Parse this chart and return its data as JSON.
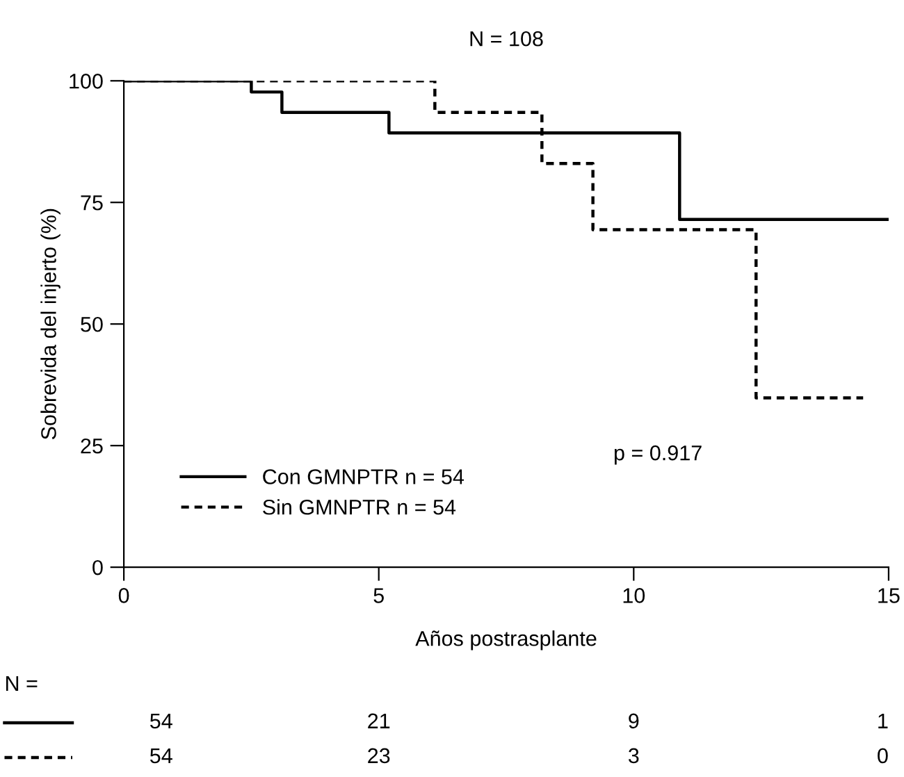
{
  "chart_data": {
    "type": "step",
    "title": "N = 108",
    "xlabel": "Años postrasplante",
    "ylabel": "Sobrevida del injerto (%)",
    "series": [
      {
        "name": "Con GMNPTR n = 54",
        "color": "#000000",
        "line_style": "solid",
        "x": [
          0,
          2.5,
          3.1,
          5.2,
          10.9,
          15
        ],
        "values": [
          100,
          97.7,
          93.5,
          89.3,
          71.5,
          71.5
        ]
      },
      {
        "name": "Sin GMNPTR n = 54",
        "color": "#000000",
        "line_style": "dashed",
        "x": [
          0,
          6.1,
          8.2,
          9.2,
          12.4,
          14.5
        ],
        "values": [
          100,
          93.5,
          83.0,
          69.4,
          34.8,
          34.8
        ]
      }
    ],
    "xlim": [
      0,
      15
    ],
    "xticks": [
      0,
      5,
      10,
      15
    ],
    "ylim": [
      0,
      100
    ],
    "yticks": [
      0,
      25,
      50,
      75,
      100
    ],
    "grid": false,
    "legend": "bottom left",
    "marker": "none",
    "annotations": [
      "p = 0.917",
      "N =",
      "54",
      "21",
      "9",
      "1",
      "54",
      "23",
      "3",
      "0"
    ]
  }
}
